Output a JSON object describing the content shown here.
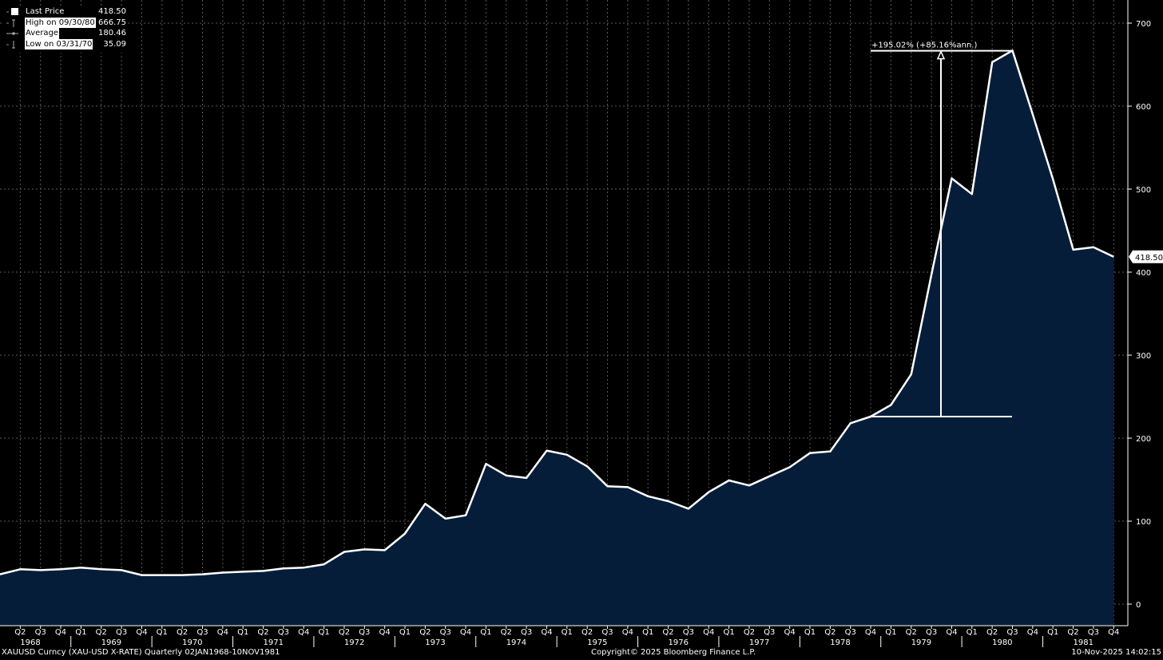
{
  "legend": {
    "items": [
      {
        "label": "Last Price",
        "value": "418.50",
        "symbol": "square-icon"
      },
      {
        "label": "High on 09/30/80",
        "value": "666.75",
        "symbol": "high-marker-icon"
      },
      {
        "label": "Average",
        "value": "180.46",
        "symbol": "average-marker-icon"
      },
      {
        "label": "Low on 03/31/70",
        "value": "35.09",
        "symbol": "low-marker-icon"
      }
    ]
  },
  "annotation": {
    "text": "+195.02% (+85.16%ann.)",
    "from_value": 226,
    "to_value": 666.75
  },
  "last_price_tag": "418.50",
  "footer": {
    "left": "XAUUSD Curncy (XAU-USD X-RATE) Quarterly 02JAN1968-10NOV1981",
    "center": "Copyright© 2025 Bloomberg Finance L.P.",
    "right": "10-Nov-2025 14:02:15"
  },
  "colors": {
    "background": "#000000",
    "area_fill": "#061d3a",
    "line": "#ffffff",
    "grid": "#5a5a5a"
  },
  "chart_data": {
    "type": "area",
    "title": "",
    "xlabel": "",
    "ylabel": "",
    "ylim": [
      -25,
      705
    ],
    "yticks": [
      0,
      100,
      200,
      300,
      400,
      500,
      600,
      700
    ],
    "grid": true,
    "legend_position": "top-left",
    "x": [
      "Q1 1968",
      "Q2 1968",
      "Q3 1968",
      "Q4 1968",
      "Q1 1969",
      "Q2 1969",
      "Q3 1969",
      "Q4 1969",
      "Q1 1970",
      "Q2 1970",
      "Q3 1970",
      "Q4 1970",
      "Q1 1971",
      "Q2 1971",
      "Q3 1971",
      "Q4 1971",
      "Q1 1972",
      "Q2 1972",
      "Q3 1972",
      "Q4 1972",
      "Q1 1973",
      "Q2 1973",
      "Q3 1973",
      "Q4 1973",
      "Q1 1974",
      "Q2 1974",
      "Q3 1974",
      "Q4 1974",
      "Q1 1975",
      "Q2 1975",
      "Q3 1975",
      "Q4 1975",
      "Q1 1976",
      "Q2 1976",
      "Q3 1976",
      "Q4 1976",
      "Q1 1977",
      "Q2 1977",
      "Q3 1977",
      "Q4 1977",
      "Q1 1978",
      "Q2 1978",
      "Q3 1978",
      "Q4 1978",
      "Q1 1979",
      "Q2 1979",
      "Q3 1979",
      "Q4 1979",
      "Q1 1980",
      "Q2 1980",
      "Q3 1980",
      "Q4 1980",
      "Q1 1981",
      "Q2 1981",
      "Q3 1981",
      "Q4 1981"
    ],
    "series": [
      {
        "values": [
          36,
          42,
          41,
          42,
          44,
          42,
          41,
          35,
          35,
          35,
          36,
          38,
          39,
          40,
          43,
          44,
          48,
          63,
          66,
          65,
          85,
          121,
          103,
          107,
          169,
          155,
          152,
          185,
          180,
          166,
          142,
          141,
          130,
          124,
          115,
          135,
          149,
          143,
          154,
          165,
          182,
          184,
          218,
          226,
          240,
          277,
          397,
          513,
          494,
          653,
          667,
          590,
          512,
          427,
          430,
          418.5
        ]
      }
    ],
    "x_tick_labels": [
      "Q2",
      "Q3",
      "Q4",
      "Q1",
      "Q2",
      "Q3",
      "Q4",
      "Q1",
      "Q2",
      "Q3",
      "Q4",
      "Q1",
      "Q2",
      "Q3",
      "Q4",
      "Q1",
      "Q2",
      "Q3",
      "Q4",
      "Q1",
      "Q2",
      "Q3",
      "Q4",
      "Q1",
      "Q2",
      "Q3",
      "Q4",
      "Q1",
      "Q2",
      "Q3",
      "Q4",
      "Q1",
      "Q2",
      "Q3",
      "Q4",
      "Q1",
      "Q2",
      "Q3",
      "Q4",
      "Q1",
      "Q2",
      "Q3",
      "Q4",
      "Q1",
      "Q2",
      "Q3",
      "Q4",
      "Q1",
      "Q2",
      "Q3",
      "Q4",
      "Q1",
      "Q2",
      "Q3",
      "Q4"
    ],
    "years": [
      "1968",
      "1969",
      "1970",
      "1971",
      "1972",
      "1973",
      "1974",
      "1975",
      "1976",
      "1977",
      "1978",
      "1979",
      "1980",
      "1981"
    ]
  }
}
